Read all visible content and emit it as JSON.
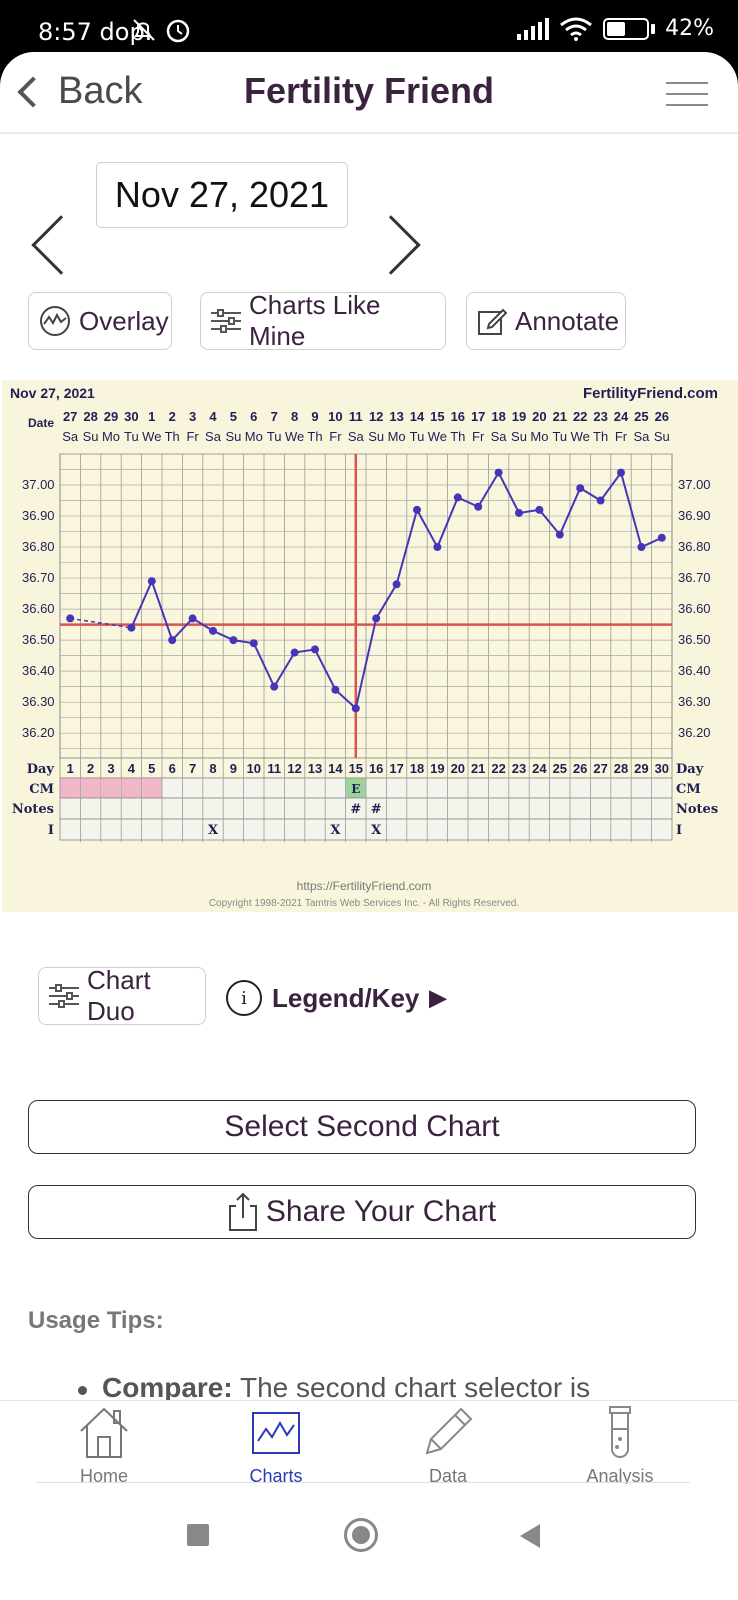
{
  "status_bar": {
    "time": "8:57 dop.",
    "battery": "42%"
  },
  "header": {
    "back_label": "Back",
    "title": "Fertility Friend"
  },
  "date_nav": {
    "date": "Nov 27, 2021"
  },
  "tools": {
    "overlay": "Overlay",
    "charts_like_mine": "Charts Like Mine",
    "annotate": "Annotate"
  },
  "chart_data": {
    "type": "line",
    "title": "Nov 27, 2021",
    "brand": "FertilityFriend.com",
    "footer_url": "https://FertilityFriend.com",
    "copyright": "Copyright 1998-2021 Tamtris Web Services Inc. - All Rights Reserved.",
    "ylim": [
      36.12,
      37.1
    ],
    "y_ticks": [
      "37.00",
      "36.90",
      "36.80",
      "36.70",
      "36.60",
      "36.50",
      "36.40",
      "36.30",
      "36.20"
    ],
    "row_labels": {
      "date": "Date",
      "day": "Day",
      "cm": "CM",
      "notes": "Notes",
      "i": "I"
    },
    "dates": [
      "27",
      "28",
      "29",
      "30",
      "1",
      "2",
      "3",
      "4",
      "5",
      "6",
      "7",
      "8",
      "9",
      "10",
      "11",
      "12",
      "13",
      "14",
      "15",
      "16",
      "17",
      "18",
      "19",
      "20",
      "21",
      "22",
      "23",
      "24",
      "25",
      "26"
    ],
    "weekdays": [
      "Sa",
      "Su",
      "Mo",
      "Tu",
      "We",
      "Th",
      "Fr",
      "Sa",
      "Su",
      "Mo",
      "Tu",
      "We",
      "Th",
      "Fr",
      "Sa",
      "Su",
      "Mo",
      "Tu",
      "We",
      "Th",
      "Fr",
      "Sa",
      "Su",
      "Mo",
      "Tu",
      "We",
      "Th",
      "Fr",
      "Sa",
      "Su"
    ],
    "days": [
      "1",
      "2",
      "3",
      "4",
      "5",
      "6",
      "7",
      "8",
      "9",
      "10",
      "11",
      "12",
      "13",
      "14",
      "15",
      "16",
      "17",
      "18",
      "19",
      "20",
      "21",
      "22",
      "23",
      "24",
      "25",
      "26",
      "27",
      "28",
      "29",
      "30"
    ],
    "temperatures": [
      36.57,
      null,
      null,
      36.54,
      36.69,
      36.5,
      36.57,
      36.53,
      36.5,
      36.49,
      36.35,
      36.46,
      36.47,
      36.34,
      36.28,
      36.57,
      36.68,
      36.92,
      36.8,
      36.96,
      36.93,
      37.04,
      36.91,
      36.92,
      36.84,
      36.99,
      36.95,
      37.04,
      36.8,
      36.83
    ],
    "coverline": 36.55,
    "ovulation_day": 15,
    "cm_marked_days": [
      1,
      2,
      3,
      4,
      5
    ],
    "cm_egg_day": {
      "day": 15,
      "label": "E"
    },
    "notes_marks": [
      {
        "day": 15,
        "label": "#"
      },
      {
        "day": 16,
        "label": "#"
      }
    ],
    "i_marks": [
      {
        "day": 8,
        "label": "X"
      },
      {
        "day": 14,
        "label": "X"
      },
      {
        "day": 16,
        "label": "X"
      }
    ],
    "colors": {
      "line": "#4536b8",
      "coverline": "#d9534f",
      "cm_fill": "#f2b6c9",
      "egg_fill": "#9bd39b",
      "background": "#f9f5dd"
    }
  },
  "chart_tools": {
    "chart_duo": "Chart Duo",
    "legend_key": "Legend/Key"
  },
  "actions": {
    "select_second": "Select Second Chart",
    "share": "Share Your Chart"
  },
  "usage": {
    "title": "Usage Tips:",
    "item_bold": "Compare:",
    "item_text": " The second chart selector is"
  },
  "bottom_nav": {
    "home": "Home",
    "charts": "Charts",
    "data": "Data",
    "analysis": "Analysis"
  }
}
